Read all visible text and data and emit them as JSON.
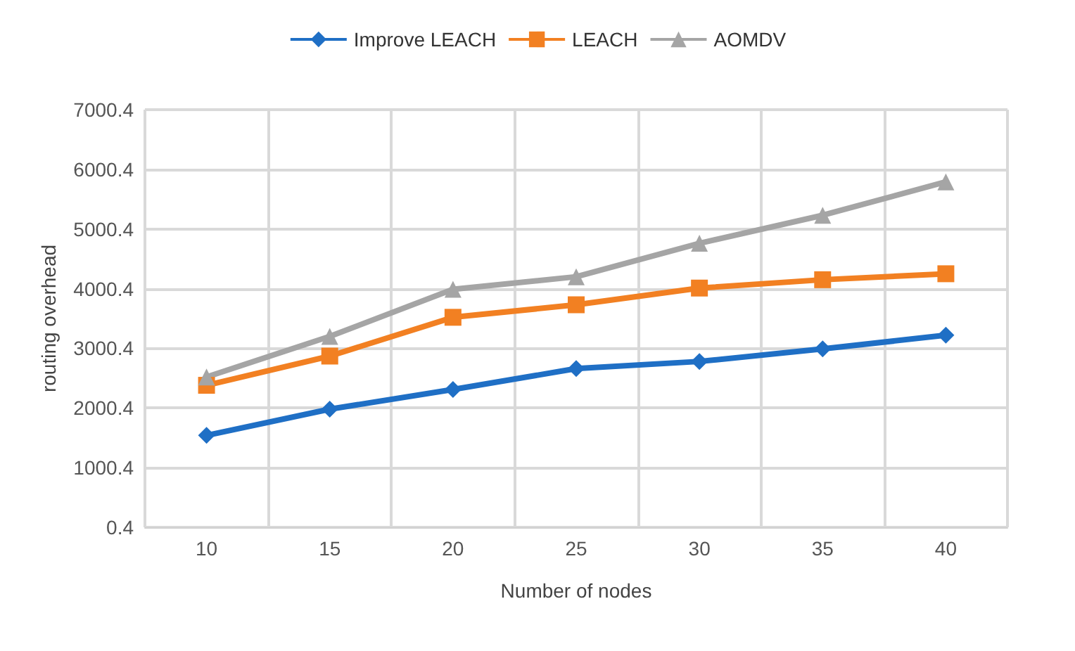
{
  "chart_data": {
    "type": "line",
    "xlabel": "Number of nodes",
    "ylabel": "routing overhead",
    "categories": [
      "10",
      "15",
      "20",
      "25",
      "30",
      "35",
      "40"
    ],
    "series": [
      {
        "name": "Improve LEACH",
        "color": "#1f6fc5",
        "marker": "diamond",
        "values": [
          1540,
          1980,
          2310,
          2660,
          2780,
          2990,
          3220
        ]
      },
      {
        "name": "LEACH",
        "color": "#f28022",
        "marker": "square",
        "values": [
          2380,
          2870,
          3520,
          3730,
          4010,
          4150,
          4250
        ]
      },
      {
        "name": "AOMDV",
        "color": "#a5a5a5",
        "marker": "triangle",
        "values": [
          2520,
          3200,
          3990,
          4200,
          4760,
          5230,
          5790
        ]
      }
    ],
    "ylim": [
      0.4,
      7000.4
    ],
    "yticks": [
      0.4,
      1000.4,
      2000.4,
      3000.4,
      4000.4,
      5000.4,
      6000.4,
      7000.4
    ],
    "grid": true,
    "legend": "top"
  }
}
